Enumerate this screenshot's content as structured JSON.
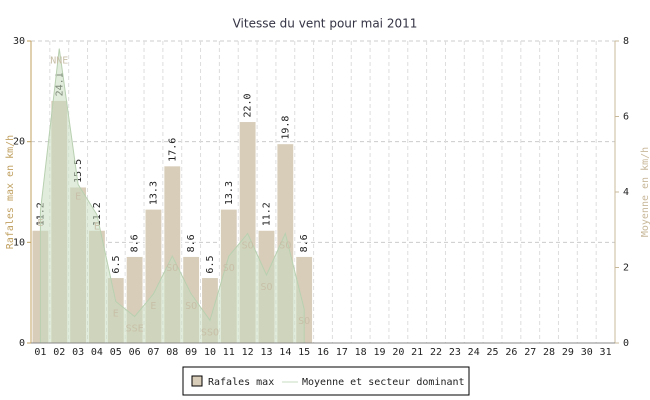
{
  "chart_data": {
    "type": "bar",
    "title": "Vitesse du vent pour mai 2011",
    "y_label": "Rafales max en km/h",
    "y2_label": "Moyenne en km/h",
    "categories": [
      "01",
      "02",
      "03",
      "04",
      "05",
      "06",
      "07",
      "08",
      "09",
      "10",
      "11",
      "12",
      "13",
      "14",
      "15",
      "16",
      "17",
      "18",
      "19",
      "20",
      "21",
      "22",
      "23",
      "24",
      "25",
      "26",
      "27",
      "28",
      "29",
      "30",
      "31"
    ],
    "ylim": [
      0,
      30
    ],
    "yticks": [
      0,
      10,
      20,
      30
    ],
    "y2lim": [
      0,
      8
    ],
    "y2ticks": [
      0,
      2,
      4,
      6,
      8
    ],
    "grid": true,
    "series": [
      {
        "name": "Rafales max",
        "type": "bar",
        "color": "#d8cdb9",
        "values": [
          11.2,
          24.1,
          15.5,
          11.2,
          6.5,
          8.6,
          13.3,
          17.6,
          8.6,
          6.5,
          13.3,
          22.0,
          11.2,
          19.8,
          8.6,
          null,
          null,
          null,
          null,
          null,
          null,
          null,
          null,
          null,
          null,
          null,
          null,
          null,
          null,
          null,
          null
        ],
        "value_labels": [
          "11.2",
          "24.1",
          "15.5",
          "11.2",
          "6.5",
          "8.6",
          "13.3",
          "17.6",
          "8.6",
          "6.5",
          "13.3",
          "22.0",
          "11.2",
          "19.8",
          "8.6",
          null,
          null,
          null,
          null,
          null,
          null,
          null,
          null,
          null,
          null,
          null,
          null,
          null,
          null,
          null,
          null
        ]
      },
      {
        "name": "Moyenne et secteur dominant",
        "type": "area",
        "axis": "y2",
        "color": "#c9dcc0",
        "values": [
          3.5,
          7.8,
          4.2,
          3.4,
          1.1,
          0.7,
          1.3,
          2.3,
          1.3,
          0.6,
          2.3,
          2.9,
          1.8,
          2.9,
          0.9,
          null,
          null,
          null,
          null,
          null,
          null,
          null,
          null,
          null,
          null,
          null,
          null,
          null,
          null,
          null,
          null
        ],
        "point_labels": [
          "E",
          "NNE",
          "E",
          "E",
          "E",
          "SSE",
          "E",
          "SO",
          "SO",
          "SSO",
          "SO",
          "SO",
          "SO",
          "SO",
          "SO",
          null,
          null,
          null,
          null,
          null,
          null,
          null,
          null,
          null,
          null,
          null,
          null,
          null,
          null,
          null,
          null
        ]
      }
    ]
  }
}
